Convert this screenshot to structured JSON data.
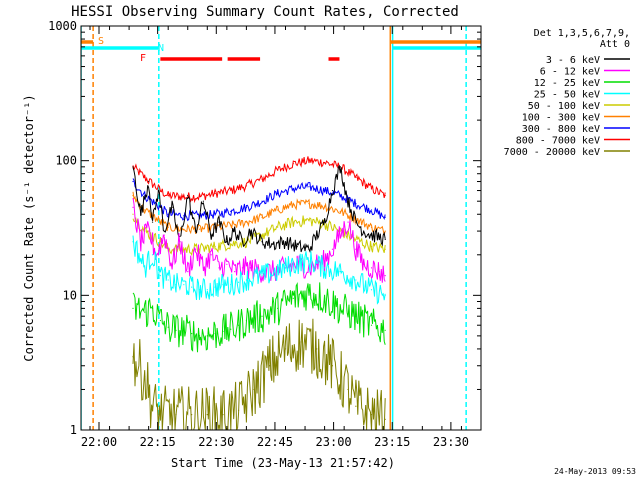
{
  "chart_data": {
    "type": "line",
    "title": "HESSI Observing Summary Count Rates, Corrected",
    "xlabel": "Start Time (23-May-13 21:57:42)",
    "ylabel": "Corrected Count Rate (s⁻¹ detector⁻¹)",
    "footer": "24-May-2013 09:53",
    "x_unit": "minutes since 21:57:42",
    "xlim": [
      0,
      100
    ],
    "ylim": [
      1,
      1000
    ],
    "yscale": "log",
    "x_ticks": [
      "22:00",
      "22:15",
      "22:30",
      "22:45",
      "23:00",
      "23:15",
      "23:30"
    ],
    "y_ticks": [
      "1",
      "10",
      "100",
      "1000"
    ],
    "legend": {
      "placement": "right",
      "header": [
        "Det 1,3,5,6,7,9,",
        "Att 0"
      ],
      "entries": [
        {
          "label": "3 - 6 keV",
          "color": "#000000"
        },
        {
          "label": "6 - 12 keV",
          "color": "#ff00ff"
        },
        {
          "label": "12 - 25 keV",
          "color": "#00dd00"
        },
        {
          "label": "25 - 50 keV",
          "color": "#00ffff"
        },
        {
          "label": "50 - 100 keV",
          "color": "#cccc00"
        },
        {
          "label": "100 - 300 keV",
          "color": "#ff8000"
        },
        {
          "label": "300 - 800 keV",
          "color": "#0000ff"
        },
        {
          "label": "800 - 7000 keV",
          "color": "#ff0000"
        },
        {
          "label": "7000 - 20000 keV",
          "color": "#808000"
        }
      ]
    },
    "flags": [
      {
        "label": "S",
        "color": "#ff8000",
        "segments": [
          [
            -2.3,
            0.8
          ],
          [
            76.8,
            100
          ]
        ]
      },
      {
        "label": "N",
        "color": "#00ffff",
        "segments": [
          [
            -2.3,
            17.6
          ],
          [
            77.4,
            100
          ]
        ]
      },
      {
        "label": "F",
        "color": "#ff0000",
        "segments": [
          [
            18.0,
            33.8
          ],
          [
            35.2,
            43.5
          ],
          [
            61.0,
            63.8
          ]
        ]
      }
    ],
    "vlines": [
      {
        "x": 0.8,
        "color": "#ff8000",
        "style": "dashed"
      },
      {
        "x": 17.6,
        "color": "#00ffff",
        "style": "dashed"
      },
      {
        "x": 76.8,
        "color": "#ff8000",
        "style": "solid"
      },
      {
        "x": 77.4,
        "color": "#00ffff",
        "style": "solid"
      },
      {
        "x": 96.2,
        "color": "#00ffff",
        "style": "dashed"
      },
      {
        "x": -2.3,
        "color": "#00ffff",
        "style": "solid"
      }
    ],
    "series": [
      {
        "name": "800 - 7000 keV",
        "color": "#ff0000",
        "x": [
          11,
          14,
          18,
          20,
          24,
          28,
          32,
          36,
          40,
          44,
          48,
          52,
          56,
          60,
          64,
          68,
          72,
          75.5
        ],
        "values": [
          90,
          75,
          60,
          55,
          54,
          54,
          57,
          60,
          65,
          73,
          85,
          95,
          100,
          97,
          90,
          75,
          62,
          55
        ]
      },
      {
        "name": "300 - 800 keV",
        "color": "#0000ff",
        "x": [
          11,
          14,
          18,
          20,
          24,
          28,
          32,
          36,
          40,
          44,
          48,
          52,
          56,
          60,
          64,
          68,
          72,
          75.5
        ],
        "values": [
          70,
          55,
          45,
          40,
          39,
          39,
          40,
          42,
          45,
          50,
          57,
          62,
          64,
          60,
          55,
          48,
          43,
          38
        ]
      },
      {
        "name": "100 - 300 keV",
        "color": "#ff8000",
        "x": [
          11,
          14,
          18,
          20,
          24,
          28,
          32,
          36,
          40,
          44,
          48,
          52,
          56,
          60,
          64,
          68,
          72,
          75.5
        ],
        "values": [
          55,
          43,
          35,
          32,
          31,
          31,
          32,
          33,
          35,
          38,
          43,
          47,
          48,
          46,
          42,
          37,
          32,
          30
        ]
      },
      {
        "name": "50 - 100 keV",
        "color": "#cccc00",
        "x": [
          11,
          14,
          18,
          20,
          24,
          28,
          32,
          36,
          40,
          44,
          48,
          52,
          56,
          60,
          64,
          68,
          72,
          75.5
        ],
        "values": [
          40,
          30,
          25,
          22,
          22,
          22,
          23,
          24,
          25,
          28,
          32,
          35,
          36,
          34,
          30,
          26,
          23,
          22
        ]
      },
      {
        "name": "3 - 6 keV",
        "color": "#000000",
        "x": [
          11,
          13,
          15,
          16,
          17.5,
          19,
          21,
          23,
          25,
          27,
          29,
          31,
          33,
          35,
          37,
          39,
          41,
          44,
          47,
          50,
          53,
          56,
          58,
          60,
          62,
          64,
          66,
          68,
          70,
          72,
          74,
          75.5
        ],
        "values": [
          90,
          40,
          70,
          35,
          60,
          30,
          45,
          25,
          55,
          30,
          50,
          28,
          35,
          25,
          30,
          25,
          30,
          25,
          24,
          25,
          23,
          22,
          28,
          35,
          60,
          90,
          50,
          35,
          30,
          28,
          27,
          26
        ]
      },
      {
        "name": "6 - 12 keV",
        "color": "#ff00ff",
        "x": [
          11,
          13,
          15,
          17,
          19,
          21,
          23,
          25,
          27,
          29,
          31,
          33,
          35,
          37,
          39,
          41,
          44,
          47,
          50,
          53,
          56,
          58,
          60,
          62,
          64,
          66,
          68,
          70,
          72,
          74,
          75.5
        ],
        "values": [
          45,
          25,
          30,
          20,
          28,
          17,
          25,
          15,
          22,
          16,
          20,
          16,
          17,
          15,
          16,
          16,
          15,
          15,
          16,
          17,
          16,
          17,
          18,
          22,
          28,
          35,
          22,
          17,
          16,
          15,
          14
        ]
      },
      {
        "name": "25 - 50 keV",
        "color": "#00ffff",
        "x": [
          11,
          14,
          16,
          18,
          20,
          22,
          24,
          26,
          28,
          30,
          32,
          34,
          36,
          38,
          40,
          44,
          48,
          52,
          56,
          60,
          64,
          68,
          72,
          75.5
        ],
        "values": [
          25,
          16,
          20,
          14,
          13,
          12,
          12,
          11.5,
          11,
          11,
          11.5,
          12,
          12,
          12.5,
          13,
          14,
          15,
          17,
          18,
          16,
          15,
          13,
          11,
          10
        ]
      },
      {
        "name": "12 - 25 keV",
        "color": "#00dd00",
        "x": [
          11,
          14,
          16,
          18,
          20,
          22,
          24,
          26,
          28,
          30,
          32,
          34,
          36,
          38,
          40,
          44,
          48,
          52,
          56,
          60,
          64,
          68,
          72,
          75.5
        ],
        "values": [
          8,
          7.5,
          8,
          6.5,
          5.8,
          5.5,
          5.5,
          5.2,
          5,
          5,
          5.2,
          5.4,
          5.6,
          6,
          6.5,
          7,
          8,
          9.5,
          10.5,
          9.5,
          8,
          7,
          6,
          5.5
        ]
      },
      {
        "name": "7000 - 20000 keV",
        "color": "#808000",
        "x": [
          11,
          14,
          16,
          18,
          22,
          26,
          30,
          34,
          38,
          42,
          46,
          50,
          54,
          58,
          62,
          66,
          68,
          72,
          75.5
        ],
        "values": [
          3.5,
          2.5,
          1.5,
          1.3,
          1.3,
          1.3,
          1.3,
          1.3,
          1.4,
          2.0,
          3.0,
          4.0,
          4.5,
          4.0,
          3.0,
          2.0,
          1.5,
          1.3,
          1.2
        ]
      }
    ]
  }
}
